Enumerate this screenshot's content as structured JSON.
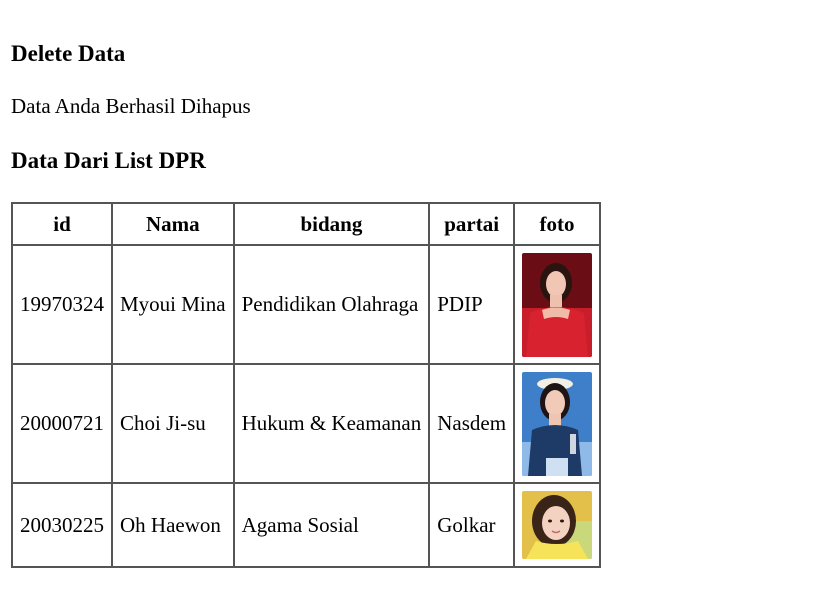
{
  "heading_delete": "Delete Data",
  "message": "Data Anda Berhasil Dihapus",
  "heading_list": "Data Dari List DPR",
  "table": {
    "headers": [
      "id",
      "Nama",
      "bidang",
      "partai",
      "foto"
    ],
    "rows": [
      {
        "id": "19970324",
        "nama": "Myoui Mina",
        "bidang": "Pendidikan Olahraga",
        "partai": "PDIP",
        "foto_icon": "person-photo-icon"
      },
      {
        "id": "20000721",
        "nama": "Choi Ji-su",
        "bidang": "Hukum & Keamanan",
        "partai": "Nasdem",
        "foto_icon": "person-photo-icon"
      },
      {
        "id": "20030225",
        "nama": "Oh Haewon",
        "bidang": "Agama Sosial",
        "partai": "Golkar",
        "foto_icon": "person-photo-icon"
      }
    ]
  },
  "colors": {
    "border": "#555555",
    "photo1_bg": "#b3121f",
    "photo2_bg": "#3f7ec9",
    "photo3_bg": "#e3c04a"
  }
}
